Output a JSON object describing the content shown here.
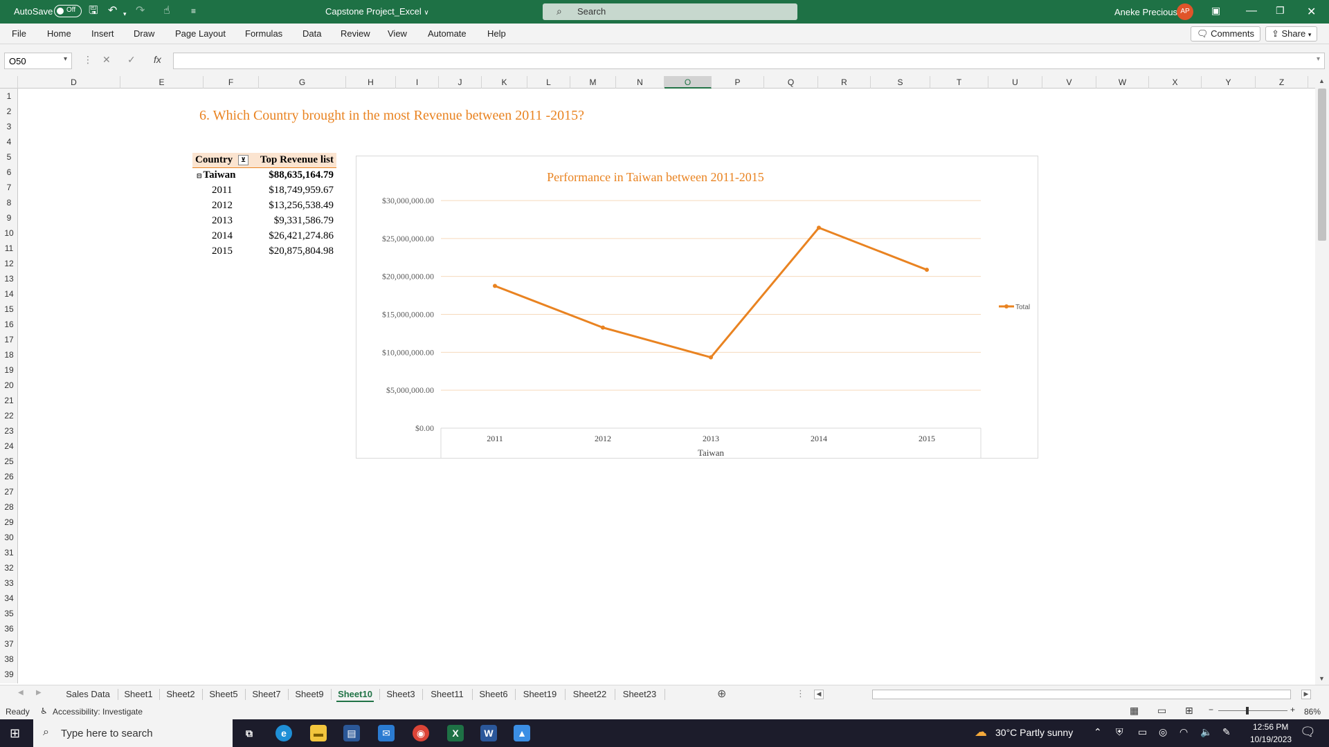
{
  "titlebar": {
    "autosave_label": "AutoSave",
    "autosave_state": "Off",
    "doc_title": "Capstone Project_Excel",
    "search_placeholder": "Search",
    "user_name": "Aneke Precious",
    "user_initials": "AP",
    "accent": "#1e7145"
  },
  "ribbon": {
    "tabs": [
      "File",
      "Home",
      "Insert",
      "Draw",
      "Page Layout",
      "Formulas",
      "Data",
      "Review",
      "View",
      "Automate",
      "Help"
    ],
    "comments_label": "Comments",
    "share_label": "Share"
  },
  "formula_bar": {
    "name_box": "O50",
    "formula": ""
  },
  "columns": [
    "D",
    "E",
    "F",
    "G",
    "H",
    "I",
    "J",
    "K",
    "L",
    "M",
    "N",
    "O",
    "P",
    "Q",
    "R",
    "S",
    "T",
    "U",
    "V",
    "W",
    "X",
    "Y",
    "Z"
  ],
  "selected_column": "O",
  "rows": [
    "1",
    "2",
    "3",
    "4",
    "5",
    "6",
    "7",
    "8",
    "9",
    "10",
    "11",
    "12",
    "13",
    "14",
    "15",
    "16",
    "17",
    "18",
    "19",
    "20",
    "21",
    "22",
    "23",
    "24",
    "25",
    "26",
    "27",
    "28",
    "29",
    "30",
    "31",
    "32",
    "33",
    "34",
    "35",
    "36",
    "37",
    "38",
    "39"
  ],
  "sheet": {
    "title": "6. Which Country brought in the most Revenue between 2011 -2015?",
    "pivot": {
      "header_country": "Country",
      "header_revenue": "Top Revenue list",
      "country": "Taiwan",
      "country_total": "$88,635,164.79",
      "years": [
        {
          "year": "2011",
          "value": "$18,749,959.67"
        },
        {
          "year": "2012",
          "value": "$13,256,538.49"
        },
        {
          "year": "2013",
          "value": "$9,331,586.79"
        },
        {
          "year": "2014",
          "value": "$26,421,274.86"
        },
        {
          "year": "2015",
          "value": "$20,875,804.98"
        }
      ]
    }
  },
  "chart_data": {
    "type": "line",
    "title": "Performance in Taiwan between 2011-2015",
    "xlabel": "Taiwan",
    "ylabel": "",
    "categories": [
      "2011",
      "2012",
      "2013",
      "2014",
      "2015"
    ],
    "series": [
      {
        "name": "Total",
        "values": [
          18749959.67,
          13256538.49,
          9331586.79,
          26421274.86,
          20875804.98
        ],
        "color": "#e98321"
      }
    ],
    "y_ticks": [
      "$0.00",
      "$5,000,000.00",
      "$10,000,000.00",
      "$15,000,000.00",
      "$20,000,000.00",
      "$25,000,000.00",
      "$30,000,000.00"
    ],
    "ylim": [
      0,
      30000000
    ],
    "grid": true,
    "legend_position": "right"
  },
  "sheet_tabs": [
    "Sales Data",
    "Sheet1",
    "Sheet2",
    "Sheet5",
    "Sheet7",
    "Sheet9",
    "Sheet10",
    "Sheet3",
    "Sheet11",
    "Sheet6",
    "Sheet19",
    "Sheet22",
    "Sheet23"
  ],
  "active_sheet": "Sheet10",
  "statusbar": {
    "ready": "Ready",
    "accessibility": "Accessibility: Investigate",
    "zoom": "86%"
  },
  "taskbar": {
    "search_placeholder": "Type here to search",
    "weather": "30°C  Partly sunny",
    "time": "12:56 PM",
    "date": "10/19/2023"
  }
}
